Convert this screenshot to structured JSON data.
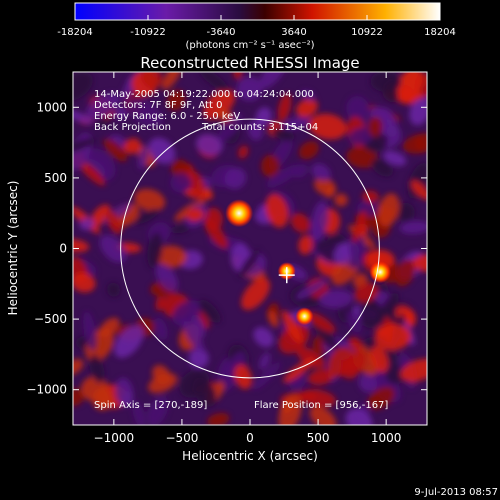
{
  "colorbar": {
    "tick_labels": [
      "-18204",
      "-10922",
      "-3640",
      "3640",
      "10922",
      "18204"
    ],
    "tick_values": [
      -18204,
      -10922,
      -3640,
      3640,
      10922,
      18204
    ],
    "range": [
      -18204,
      18204
    ],
    "units": "(photons cm⁻² s⁻¹ asec⁻²)",
    "colors": [
      "#0000ff",
      "#7b1fa2",
      "#3a1258",
      "#8b0000",
      "#ff2a00",
      "#ffd24a",
      "#ffffff"
    ]
  },
  "chart_data": {
    "type": "heatmap",
    "title": "Reconstructed RHESSI Image",
    "xlabel": "Heliocentric X (arcsec)",
    "ylabel": "Heliocentric Y (arcsec)",
    "xlim": [
      -1300,
      1300
    ],
    "ylim": [
      -1250,
      1250
    ],
    "x_ticks": [
      -1000,
      -500,
      0,
      500,
      1000
    ],
    "x_tick_labels": [
      "−1000",
      "−500",
      "0",
      "500",
      "1000"
    ],
    "y_ticks": [
      -1000,
      -500,
      0,
      500,
      1000
    ],
    "y_tick_labels": [
      "−1000",
      "−500",
      "0",
      "500",
      "1000"
    ],
    "solar_limb_radius_arcsec": 950,
    "flare_position": [
      956,
      -167
    ],
    "spin_axis": [
      270,
      -189
    ],
    "bright_sources": [
      {
        "x": -80,
        "y": 250
      },
      {
        "x": 956,
        "y": -167
      },
      {
        "x": 400,
        "y": -480
      },
      {
        "x": 270,
        "y": -160
      }
    ],
    "annotations": [
      "14-May-2005 04:19:22.000 to 04:24:04.000",
      "Detectors: 7F 8F 9F, Att 0",
      "Energy Range: 6.0 - 25.0 keV",
      "Back Projection",
      "Total counts: 3.115+04"
    ],
    "spin_axis_label": "Spin Axis = [270,-189]",
    "flare_position_label": "Flare Position = [956,-167]"
  },
  "footer": {
    "timestamp": "9-Jul-2013 08:57"
  }
}
